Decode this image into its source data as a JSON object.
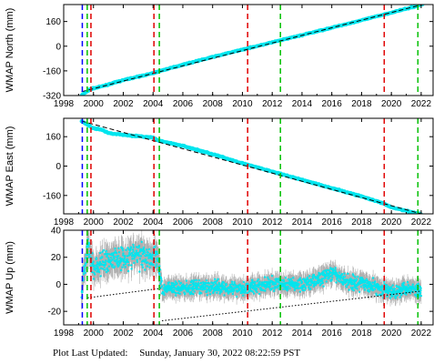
{
  "chart_data": [
    {
      "type": "scatter",
      "ylabel": "WMAP North (mm)",
      "xlim": [
        1998,
        2022.8
      ],
      "ylim": [
        -320,
        270
      ],
      "yticks": [
        -320,
        -160,
        0,
        160
      ],
      "xticks": [
        1998,
        2000,
        2002,
        2004,
        2006,
        2008,
        2010,
        2012,
        2014,
        2016,
        2018,
        2020,
        2022
      ],
      "xtick_labels": [
        "1998",
        "2000",
        "2002",
        "2004",
        "2006",
        "2008",
        "2010",
        "2012",
        "2014",
        "2016",
        "2018",
        "2020",
        "2022"
      ],
      "series": [
        {
          "role": "observations",
          "color": "#00e5ee",
          "x": [
            1999.2,
            1999.8,
            2000.5,
            2002,
            2004,
            2004.5,
            2006,
            2008,
            2010,
            2012,
            2014,
            2016,
            2018,
            2020,
            2021.5,
            2022.1
          ],
          "y": [
            -318,
            -278,
            -262,
            -220,
            -175,
            -160,
            -120,
            -70,
            -22,
            25,
            72,
            120,
            168,
            218,
            255,
            272
          ]
        },
        {
          "role": "model-fit",
          "color": "#000000",
          "style": "dashed",
          "x": [
            1999.2,
            2022.1
          ],
          "y": [
            -295,
            270
          ]
        }
      ]
    },
    {
      "type": "scatter",
      "ylabel": "WMAP East (mm)",
      "xlim": [
        1998,
        2022.8
      ],
      "ylim": [
        -260,
        260
      ],
      "yticks": [
        -160,
        0,
        160
      ],
      "series": [
        {
          "role": "observations",
          "color": "#00e5ee",
          "x": [
            1999.2,
            1999.6,
            2000,
            2000.5,
            2001,
            2002,
            2004,
            2004.3,
            2006,
            2008,
            2010,
            2012,
            2014,
            2016,
            2018,
            2019.5,
            2020,
            2022
          ],
          "y": [
            245,
            225,
            205,
            200,
            180,
            170,
            155,
            140,
            110,
            65,
            15,
            -30,
            -75,
            -120,
            -165,
            -205,
            -225,
            -262
          ]
        },
        {
          "role": "model-fit",
          "color": "#000000",
          "style": "dashed",
          "x": [
            1999.2,
            2022.1
          ],
          "y": [
            245,
            -262
          ]
        }
      ]
    },
    {
      "type": "scatter",
      "ylabel": "WMAP Up (mm)",
      "xlim": [
        1998,
        2022.8
      ],
      "ylim": [
        -30,
        40
      ],
      "yticks": [
        -20,
        0,
        20,
        40
      ],
      "series": [
        {
          "role": "observations",
          "color": "#00e5ee",
          "errorbar_color": "#b0b0b0",
          "x": [
            1999.2,
            1999.6,
            2000,
            2001,
            2002,
            2003,
            2004,
            2004.3,
            2004.6,
            2005,
            2006,
            2008,
            2010,
            2012,
            2014,
            2015,
            2016,
            2017,
            2018,
            2019,
            2020,
            2021,
            2022
          ],
          "y": [
            -5,
            28,
            12,
            18,
            20,
            22,
            20,
            22,
            -5,
            -2,
            -3,
            -2,
            -3,
            0,
            0,
            3,
            8,
            2,
            1,
            -2,
            -6,
            -2,
            -5
          ]
        },
        {
          "role": "model-fit",
          "color": "#000000",
          "style": "dotted",
          "x": [
            1999.6,
            2004.5,
            2004.6,
            2022
          ],
          "y": [
            -10,
            -3,
            -27,
            -5
          ]
        }
      ]
    }
  ],
  "events": [
    {
      "year": 1999.25,
      "color": "#0000ff"
    },
    {
      "year": 1999.58,
      "color": "#00c000"
    },
    {
      "year": 1999.83,
      "color": "#e00000"
    },
    {
      "year": 2004.06,
      "color": "#e00000"
    },
    {
      "year": 2004.42,
      "color": "#00c000"
    },
    {
      "year": 2010.35,
      "color": "#e00000"
    },
    {
      "year": 2012.55,
      "color": "#00c000"
    },
    {
      "year": 2019.52,
      "color": "#e00000"
    },
    {
      "year": 2021.78,
      "color": "#00c000"
    }
  ],
  "footer": {
    "label": "Plot Last Updated:",
    "timestamp": "Sunday, January 30, 2022 08:22:59 PST"
  }
}
